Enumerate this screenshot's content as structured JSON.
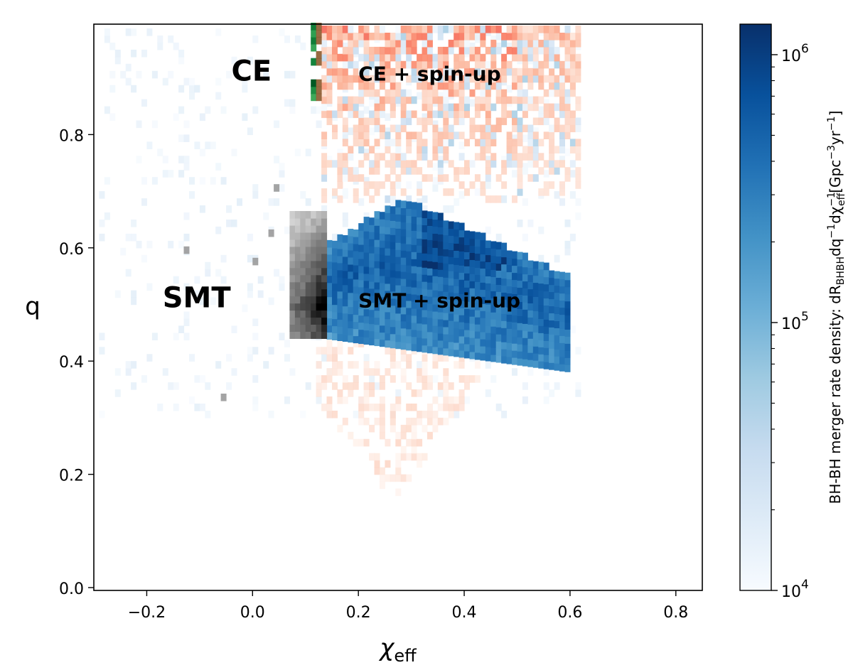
{
  "chart_data": {
    "type": "heatmap",
    "xlabel": "χ",
    "xlabel_sub": "eff",
    "ylabel": "q",
    "xlim": [
      -0.3,
      0.85
    ],
    "ylim": [
      -0.005,
      0.995
    ],
    "xticks": [
      -0.2,
      0.0,
      0.2,
      0.4,
      0.6,
      0.8
    ],
    "xtick_labels": [
      "−0.2",
      "0.0",
      "0.2",
      "0.4",
      "0.6",
      "0.8"
    ],
    "yticks": [
      0.0,
      0.2,
      0.4,
      0.6,
      0.8
    ],
    "ytick_labels": [
      "0.0",
      "0.2",
      "0.4",
      "0.6",
      "0.8"
    ],
    "grid": false,
    "colorbar": {
      "scale": "log",
      "range": [
        10000,
        1300000
      ],
      "ticks": [
        {
          "value": 10000,
          "base": "10",
          "exp": "4"
        },
        {
          "value": 100000,
          "base": "10",
          "exp": "5"
        },
        {
          "value": 1000000,
          "base": "10",
          "exp": "6"
        }
      ],
      "label_prefix": "BH-BH merger rate density: dR",
      "label_sub1": "BHBH",
      "label_mid1": "dq",
      "label_sup1": "−1",
      "label_mid2": "dχ",
      "label_sup2": "−1",
      "label_sub2": "eff",
      "label_mid3": "[Gpc",
      "label_sup3": "−3",
      "label_mid4": "yr",
      "label_sup4": "−1",
      "label_end": "]",
      "colors": [
        "#f7fbff",
        "#deebf7",
        "#c6dbef",
        "#9ecae1",
        "#6baed6",
        "#4292c6",
        "#2171b5",
        "#08519c",
        "#08306b"
      ]
    },
    "regions": [
      {
        "name": "CE + spin-up",
        "colormap": "Reds",
        "color": "#e0575c",
        "x_range": [
          0.13,
          0.62
        ],
        "y_range": [
          0.8,
          0.995
        ],
        "peak": 0.55
      },
      {
        "name": "CE",
        "colormap": "Greens",
        "color": "#006d2c",
        "x_range": [
          0.105,
          0.125
        ],
        "y_range": [
          0.86,
          0.995
        ],
        "peak": 1.0
      },
      {
        "name": "SMT + spin-up",
        "colormap": "Blues",
        "color": "#08519c",
        "x_range": [
          0.13,
          0.6
        ],
        "y_range": [
          0.37,
          0.68
        ],
        "peak": 1.0
      },
      {
        "name": "SMT",
        "colormap": "Greys",
        "color": "#000000",
        "x_range": [
          0.07,
          0.13
        ],
        "y_range": [
          0.44,
          0.66
        ],
        "peak": 1.0
      }
    ],
    "annotations": [
      {
        "text": "CE",
        "x": -0.04,
        "y": 0.91,
        "size": "large"
      },
      {
        "text": "CE + spin-up",
        "x": 0.2,
        "y": 0.91,
        "size": "medium"
      },
      {
        "text": "SMT",
        "x": -0.17,
        "y": 0.51,
        "size": "large"
      },
      {
        "text": "SMT + spin-up",
        "x": 0.2,
        "y": 0.51,
        "size": "medium"
      }
    ]
  }
}
